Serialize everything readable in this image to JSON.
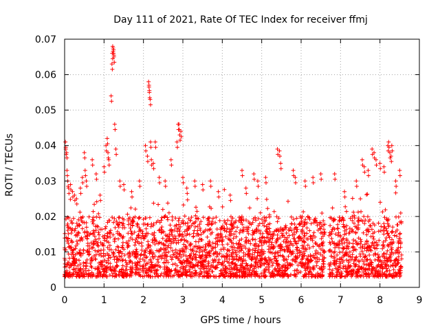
{
  "chart_data": {
    "type": "scatter",
    "title": "Day 111 of 2021, Rate Of TEC Index for receiver ffmj",
    "xlabel": "GPS time / hours",
    "ylabel": "ROTI / TECUs",
    "xlim": [
      0,
      9
    ],
    "ylim": [
      0,
      0.07
    ],
    "xticks": [
      0,
      1,
      2,
      3,
      4,
      5,
      6,
      7,
      8,
      9
    ],
    "xtick_labels": [
      "0",
      "1",
      "2",
      "3",
      "4",
      "5",
      "6",
      "7",
      "8",
      "9"
    ],
    "yticks": [
      0,
      0.01,
      0.02,
      0.03,
      0.04,
      0.05,
      0.06,
      0.07
    ],
    "ytick_labels": [
      "0",
      "0.01",
      "0.02",
      "0.03",
      "0.04",
      "0.05",
      "0.06",
      "0.07"
    ],
    "grid": true,
    "marker": "plus",
    "color": "#ff0000",
    "series": [
      {
        "name": "ROTI",
        "data_coverage_hours": [
          [
            0,
            6.6
          ],
          [
            6.7,
            8.55
          ]
        ],
        "base_range": [
          0.003,
          0.02
        ],
        "x": [
          0.02,
          0.03,
          0.05,
          0.06,
          0.08,
          0.1,
          0.15,
          0.2,
          0.25,
          0.3,
          0.4,
          0.45,
          0.5,
          0.52,
          0.55,
          0.7,
          0.8,
          0.9,
          1.0,
          1.05,
          1.08,
          1.1,
          1.12,
          1.18,
          1.2,
          1.21,
          1.22,
          1.23,
          1.24,
          1.25,
          1.27,
          1.3,
          1.4,
          1.5,
          1.7,
          1.9,
          2.05,
          2.1,
          2.13,
          2.14,
          2.15,
          2.17,
          2.18,
          2.2,
          2.25,
          2.3,
          2.4,
          2.55,
          2.7,
          2.85,
          2.88,
          2.9,
          2.92,
          2.95,
          3.0,
          3.1,
          3.3,
          3.5,
          3.7,
          3.9,
          4.2,
          4.5,
          4.6,
          4.8,
          4.9,
          5.1,
          5.4,
          5.45,
          5.48,
          5.8,
          5.85,
          6.1,
          6.3,
          6.5,
          6.85,
          7.1,
          7.4,
          7.55,
          7.6,
          7.7,
          7.8,
          7.85,
          7.9,
          8.0,
          8.1,
          8.2,
          8.22,
          8.25,
          8.28,
          8.3,
          8.4,
          8.5
        ],
        "y": [
          0.041,
          0.039,
          0.038,
          0.033,
          0.03,
          0.028,
          0.029,
          0.027,
          0.026,
          0.025,
          0.028,
          0.031,
          0.038,
          0.033,
          0.03,
          0.036,
          0.032,
          0.026,
          0.034,
          0.04,
          0.042,
          0.038,
          0.036,
          0.054,
          0.063,
          0.066,
          0.068,
          0.0675,
          0.067,
          0.065,
          0.046,
          0.039,
          0.03,
          0.029,
          0.027,
          0.03,
          0.04,
          0.037,
          0.058,
          0.057,
          0.055,
          0.053,
          0.041,
          0.036,
          0.035,
          0.041,
          0.031,
          0.03,
          0.036,
          0.041,
          0.046,
          0.046,
          0.043,
          0.044,
          0.031,
          0.028,
          0.03,
          0.029,
          0.03,
          0.027,
          0.026,
          0.033,
          0.028,
          0.032,
          0.03,
          0.031,
          0.039,
          0.0385,
          0.035,
          0.033,
          0.031,
          0.03,
          0.031,
          0.032,
          0.032,
          0.027,
          0.03,
          0.036,
          0.034,
          0.033,
          0.039,
          0.038,
          0.036,
          0.035,
          0.034,
          0.04,
          0.041,
          0.038,
          0.037,
          0.04,
          0.03,
          0.033
        ]
      }
    ]
  }
}
